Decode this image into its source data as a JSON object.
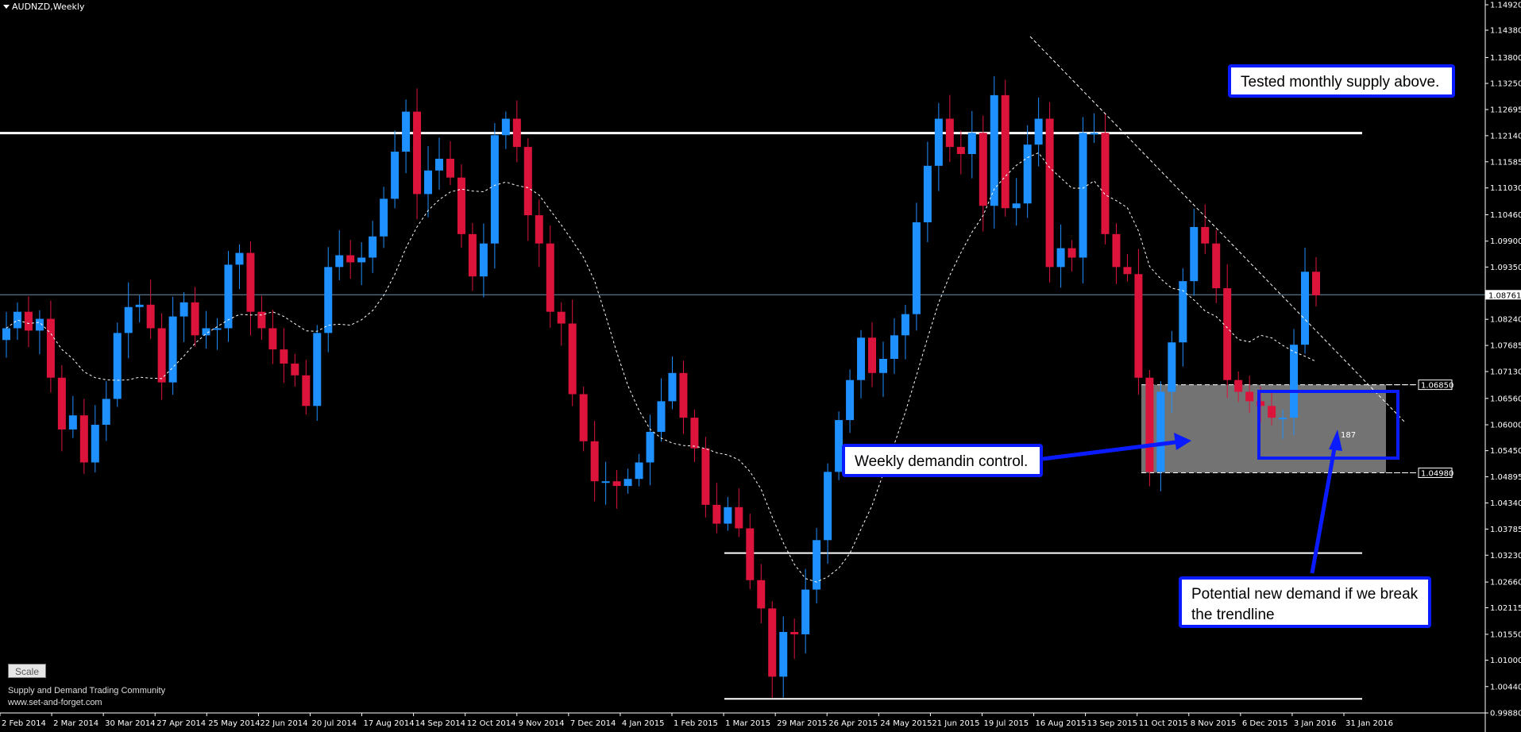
{
  "window": {
    "title": "AUDNZD,Weekly"
  },
  "callouts": {
    "supply": "Tested monthly supply above.",
    "demand": "Weekly demandin control.",
    "potential": "Potential new demand if we break the trendline"
  },
  "box_label": "187",
  "scale_button": "Scale",
  "footer": {
    "line1": "Supply and Demand Trading Community",
    "line2": "www.set-and-forget.com"
  },
  "colors": {
    "bull": "#1e90ff",
    "bear": "#dc143c",
    "accent": "#0a1cff"
  },
  "chart_data": {
    "type": "candlestick",
    "symbol": "AUDNZD",
    "timeframe": "Weekly",
    "ylim": [
      0.9998,
      1.1492
    ],
    "price_ticks": [
      "1.14920",
      "1.14380",
      "1.13800",
      "1.13250",
      "1.12695",
      "1.12140",
      "1.11585",
      "1.11030",
      "1.10460",
      "1.09900",
      "1.09350",
      "1.08761",
      "1.08240",
      "1.07685",
      "1.07130",
      "1.06850",
      "1.06560",
      "1.06000",
      "1.05450",
      "1.04980",
      "1.04895",
      "1.04340",
      "1.03785",
      "1.03230",
      "1.02660",
      "1.02115",
      "1.01550",
      "1.01000",
      "1.00440",
      "0.99880"
    ],
    "current_price": "1.08761",
    "zone_labels": [
      "1.06850",
      "1.04980"
    ],
    "time_labels": [
      "2 Feb 2014",
      "2 Mar 2014",
      "30 Mar 2014",
      "27 Apr 2014",
      "25 May 2014",
      "22 Jun 2014",
      "20 Jul 2014",
      "17 Aug 2014",
      "14 Sep 2014",
      "12 Oct 2014",
      "9 Nov 2014",
      "7 Dec 2014",
      "4 Jan 2015",
      "1 Feb 2015",
      "1 Mar 2015",
      "29 Mar 2015",
      "26 Apr 2015",
      "24 May 2015",
      "21 Jun 2015",
      "19 Jul 2015",
      "16 Aug 2015",
      "13 Sep 2015",
      "11 Oct 2015",
      "8 Nov 2015",
      "6 Dec 2015",
      "3 Jan 2016",
      "31 Jan 2016"
    ],
    "closes": [
      1.0805,
      1.084,
      1.08,
      1.0825,
      1.07,
      1.059,
      1.062,
      1.052,
      1.06,
      1.0655,
      1.0795,
      1.085,
      1.0855,
      1.0805,
      1.069,
      1.083,
      1.086,
      1.079,
      1.0805,
      1.0805,
      1.094,
      1.0965,
      1.084,
      1.0805,
      1.076,
      1.073,
      1.0705,
      1.064,
      1.0795,
      1.0935,
      1.096,
      1.0945,
      1.0955,
      1.1,
      1.108,
      1.118,
      1.1265,
      1.109,
      1.114,
      1.1165,
      1.1125,
      1.1005,
      1.0915,
      1.0985,
      1.1215,
      1.125,
      1.119,
      1.1045,
      1.0985,
      1.084,
      1.0815,
      1.0665,
      1.0565,
      1.048,
      1.048,
      1.047,
      1.0485,
      1.052,
      1.0585,
      1.065,
      1.071,
      1.0615,
      1.055,
      1.043,
      1.039,
      1.0425,
      1.038,
      1.027,
      1.021,
      1.0065,
      1.016,
      1.0155,
      1.025,
      1.0355,
      1.05,
      1.061,
      1.0695,
      1.0785,
      1.071,
      1.074,
      1.079,
      1.0835,
      1.103,
      1.115,
      1.125,
      1.119,
      1.1175,
      1.122,
      1.1065,
      1.13,
      1.106,
      1.107,
      1.1195,
      1.125,
      1.0935,
      1.0975,
      1.0955,
      1.122,
      1.122,
      1.1005,
      1.0935,
      1.092,
      1.07,
      1.05,
      1.067,
      1.0775,
      1.0905,
      1.102,
      1.0985,
      1.089,
      1.0695,
      1.067,
      1.065,
      1.064,
      1.0615,
      1.0615,
      1.077,
      1.0925,
      1.0875
    ],
    "sma_label": "moving average (dashed)"
  }
}
